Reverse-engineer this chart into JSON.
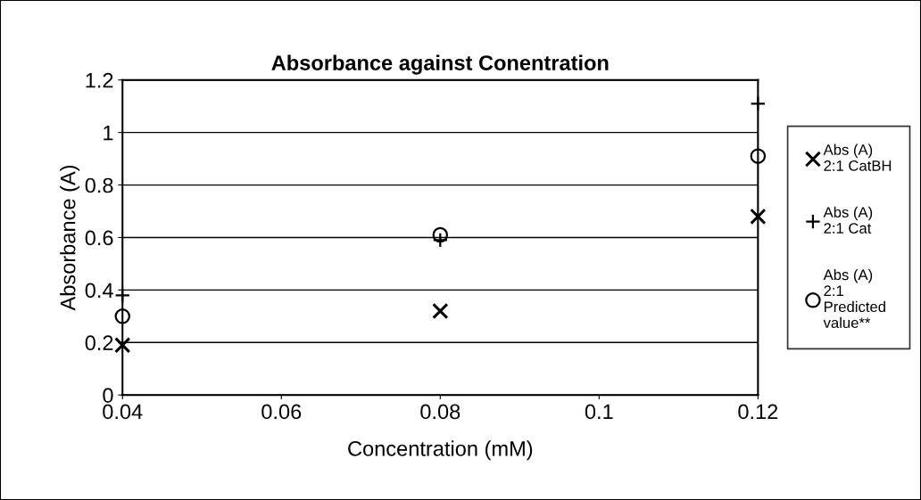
{
  "chart_data": {
    "type": "scatter",
    "title": "Absorbance against Conentration",
    "xlabel": "Concentration (mM)",
    "ylabel": "Absorbance (A)",
    "x": [
      0.04,
      0.08,
      0.12
    ],
    "series": [
      {
        "name": "Abs (A) 2:1 CatBH",
        "color": "#000000",
        "marker": "cross",
        "values": [
          0.19,
          0.32,
          0.68
        ]
      },
      {
        "name": "Abs (A) 2:1 Cat",
        "color": "#000000",
        "marker": "plus",
        "values": [
          0.38,
          0.59,
          1.11
        ]
      },
      {
        "name": "Abs (A) 2:1 Predicted value**",
        "color": "#000000",
        "marker": "circle",
        "values": [
          0.3,
          0.61,
          0.91
        ]
      }
    ],
    "xlim": [
      0.04,
      0.12
    ],
    "xticks": [
      0.04,
      0.06,
      0.08,
      {
        "value": 0.1,
        "label": "0.1"
      },
      0.12
    ],
    "ylim": [
      0,
      1.2
    ],
    "yticks": [
      0,
      0.2,
      0.4,
      0.6,
      0.8,
      1,
      1.2
    ],
    "grid": "y",
    "legend": "right"
  }
}
